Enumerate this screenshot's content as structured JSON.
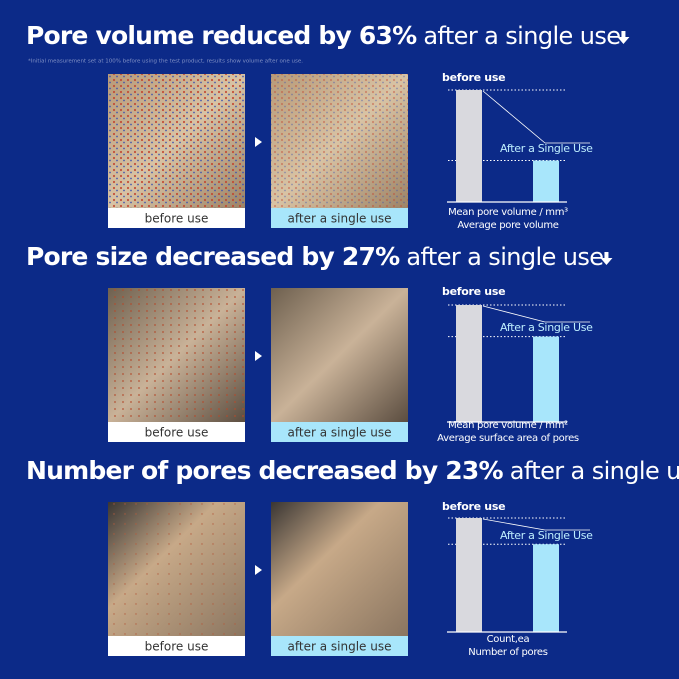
{
  "sections": [
    {
      "title_bold": "Pore volume reduced by 63%",
      "title_light": "after a single use",
      "footnote": "*Initial measurement set at 100% before using the test product, results show volume after one use.",
      "image_labels": [
        "before use",
        "after a single use"
      ],
      "chart_data": {
        "type": "bar",
        "categories": [
          "before use",
          "After a Single Use"
        ],
        "values": [
          100,
          37
        ],
        "colors": [
          "#d9d9de",
          "#a8e6fb"
        ],
        "ylim": [
          0,
          100
        ],
        "caption": [
          "Mean pore volume / mm³",
          "Average pore volume"
        ]
      }
    },
    {
      "title_bold": "Pore size decreased by 27%",
      "title_light": "after a single use",
      "image_labels": [
        "before use",
        "after a single use"
      ],
      "chart_data": {
        "type": "bar",
        "categories": [
          "before use",
          "After a Single Use"
        ],
        "values": [
          100,
          73
        ],
        "colors": [
          "#d9d9de",
          "#a8e6fb"
        ],
        "ylim": [
          0,
          100
        ],
        "caption": [
          "Mean pore volume / mm²",
          "Average surface area of pores"
        ]
      }
    },
    {
      "title_bold": "Number of pores decreased by 23%",
      "title_light": "after a single use",
      "image_labels": [
        "before use",
        "after a single use"
      ],
      "chart_data": {
        "type": "bar",
        "categories": [
          "before use",
          "After a Single Use"
        ],
        "values": [
          100,
          77
        ],
        "colors": [
          "#d9d9de",
          "#a8e6fb"
        ],
        "ylim": [
          0,
          100
        ],
        "caption": [
          "Count,ea",
          "Number of pores"
        ]
      }
    }
  ]
}
